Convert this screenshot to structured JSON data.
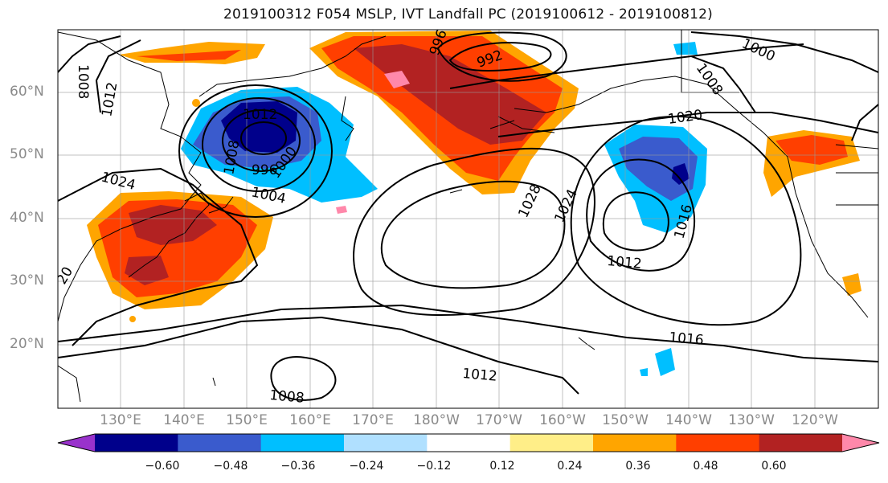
{
  "title": "2019100312 F054 MSLP, IVT Landfall PC (2019100612 - 2019100812)",
  "lat_labels": [
    "60°N",
    "50°N",
    "40°N",
    "30°N",
    "20°N"
  ],
  "lon_labels": [
    "130°E",
    "140°E",
    "150°E",
    "160°E",
    "170°E",
    "180°W",
    "170°W",
    "160°W",
    "150°W",
    "140°W",
    "130°W",
    "120°W"
  ],
  "contour_labels": [
    "1008",
    "1012",
    "1012",
    "1008",
    "996",
    "1004",
    "1000",
    "1024",
    "20",
    "996",
    "992",
    "1000",
    "1008",
    "1020",
    "1028",
    "1024",
    "1016",
    "1012",
    "1016",
    "1012",
    "1008"
  ],
  "colorbar": {
    "colors": [
      "#9932cc",
      "#00008b",
      "#3a5bcd",
      "#00bfff",
      "#b0e0ff",
      "#ffffff",
      "#ffee88",
      "#ffa500",
      "#ff3f00",
      "#b22222",
      "#ff88aa"
    ],
    "tick_labels": [
      "−0.60",
      "−0.48",
      "−0.36",
      "−0.24",
      "−0.12",
      "0.12",
      "0.24",
      "0.36",
      "0.48",
      "0.60"
    ]
  }
}
